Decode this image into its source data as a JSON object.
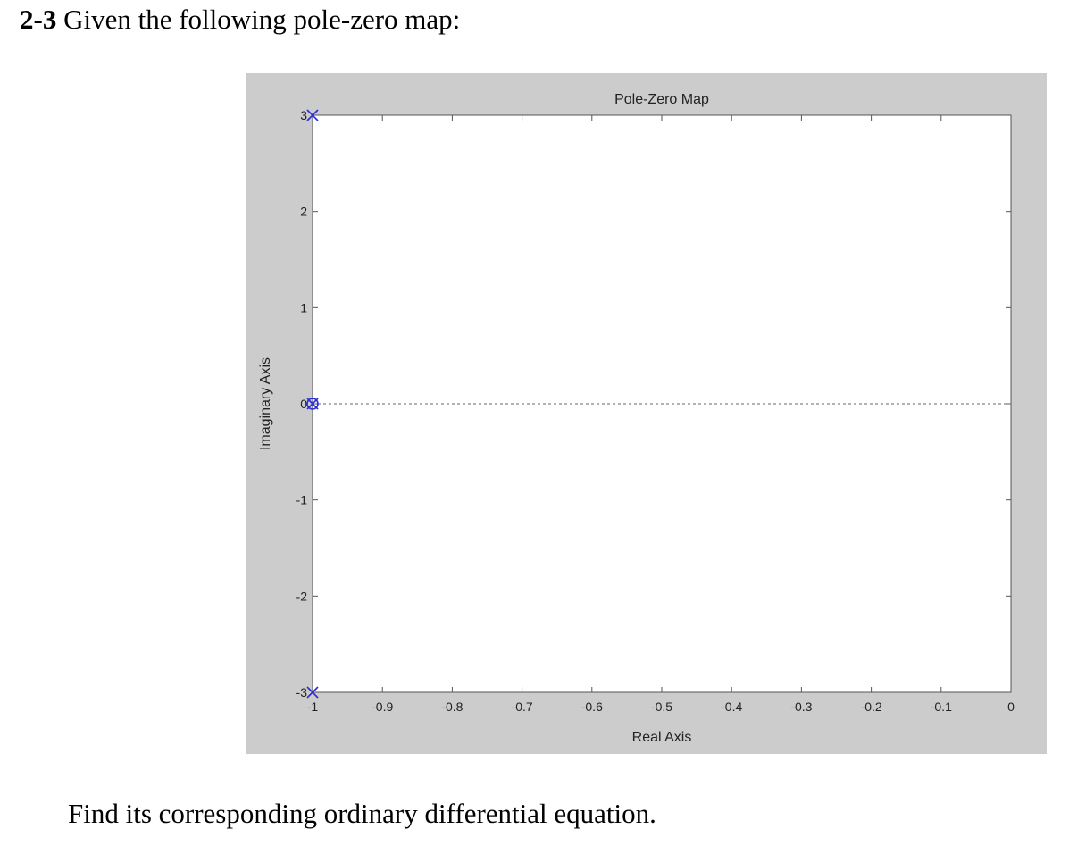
{
  "problem": {
    "number": "2-3",
    "statement": "Given the following pole-zero map:",
    "question": "Find its corresponding ordinary differential equation."
  },
  "chart_data": {
    "type": "scatter",
    "title": "Pole-Zero Map",
    "xlabel": "Real Axis",
    "ylabel": "Imaginary Axis",
    "xlim": [
      -1,
      0
    ],
    "ylim": [
      -3,
      3
    ],
    "x_ticks": [
      -1,
      -0.9,
      -0.8,
      -0.7,
      -0.6,
      -0.5,
      -0.4,
      -0.3,
      -0.2,
      -0.1,
      0
    ],
    "x_tick_labels": [
      "-1",
      "-0.9",
      "-0.8",
      "-0.7",
      "-0.6",
      "-0.5",
      "-0.4",
      "-0.3",
      "-0.2",
      "-0.1",
      "0"
    ],
    "y_ticks": [
      -3,
      -2,
      -1,
      0,
      1,
      2,
      3
    ],
    "y_tick_labels": [
      "-3",
      "-2",
      "-1",
      "0",
      "1",
      "2",
      "3"
    ],
    "grid": false,
    "reference_line": {
      "y": 0,
      "style": "dashed"
    },
    "series": [
      {
        "marker": "x",
        "points": [
          {
            "x": -1,
            "y": 3
          },
          {
            "x": -1,
            "y": -3
          },
          {
            "x": -1,
            "y": 0
          }
        ]
      },
      {
        "marker": "o",
        "points": [
          {
            "x": -1,
            "y": 0
          }
        ]
      }
    ],
    "colors": {
      "markers": "#2b2bdc",
      "background": "#cccccc",
      "axes_bg": "#ffffff"
    }
  }
}
